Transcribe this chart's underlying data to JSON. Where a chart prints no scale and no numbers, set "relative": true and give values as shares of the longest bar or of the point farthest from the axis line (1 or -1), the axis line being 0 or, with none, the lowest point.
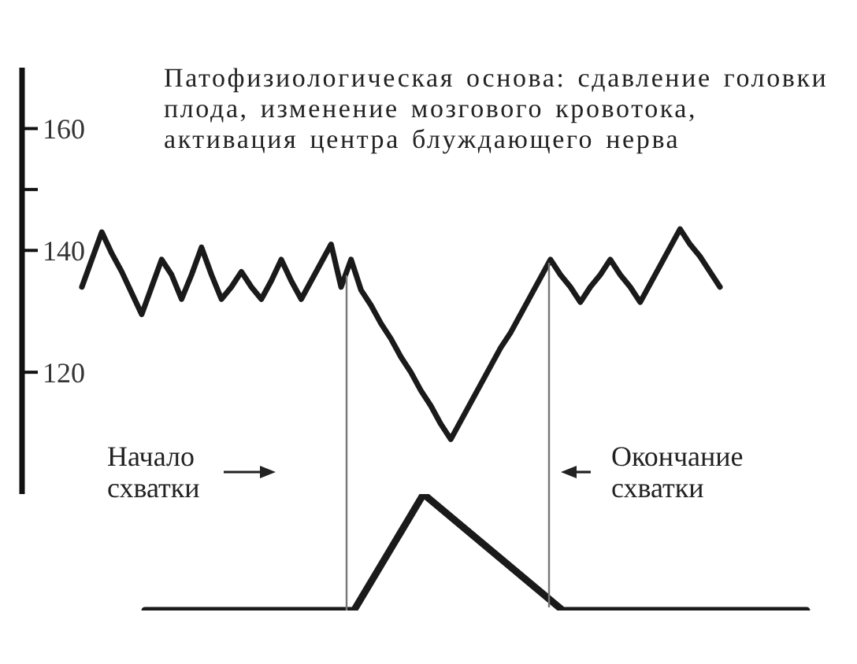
{
  "chart_data": [
    {
      "type": "line",
      "annotations": [
        "Патофизиологическая основа: сдавление головки плода, изменение мозгового кровотока, активация центра блуждающего нерва"
      ],
      "categories": [
        null,
        null,
        null,
        null,
        null,
        null,
        null,
        null,
        null,
        null,
        null,
        null,
        null,
        null,
        null,
        null,
        null,
        null,
        null,
        null,
        null,
        null,
        null,
        null,
        null,
        null,
        null,
        null,
        null,
        null,
        null,
        null,
        null,
        null,
        null,
        null,
        null,
        null,
        null,
        null,
        null,
        null,
        null,
        null,
        null,
        null,
        null,
        null,
        null,
        null,
        null,
        null,
        null,
        null,
        null,
        null,
        null,
        null,
        null,
        null,
        null,
        null,
        null,
        null,
        null,
        null,
        null,
        null,
        null,
        null,
        null
      ],
      "series": [
        {
          "color": "#1a1a1a",
          "values": [
            null,
            null,
            null,
            null,
            null,
            null,
            134,
            138.5,
            143,
            139.5,
            136.5,
            133,
            129.5,
            134,
            138.5,
            136,
            132,
            136,
            140.5,
            136,
            132,
            134,
            136.5,
            134,
            132,
            135,
            138.5,
            135,
            132,
            135,
            138,
            141,
            134,
            138.5,
            133.5,
            131,
            128,
            125.5,
            122.5,
            120,
            117,
            114.5,
            111.5,
            109,
            112,
            115,
            118,
            121,
            124,
            126.5,
            129.5,
            132.5,
            135.5,
            138.5,
            136,
            134,
            131.5,
            134,
            136,
            138.5,
            136,
            134,
            131.5,
            134.5,
            137.5,
            140.5,
            143.5,
            141,
            139,
            136.5,
            134
          ]
        }
      ],
      "ylim": [
        100,
        170
      ],
      "yticks": [
        160,
        {
          "value": 150,
          "label": null
        },
        140,
        120
      ],
      "tick_labels": "y",
      "marker": "none",
      "line_style": "solid"
    },
    {
      "type": "line",
      "relative": true,
      "annotations": [
        "Начало схватки",
        "Окончание схватки"
      ],
      "categories": [
        null,
        null,
        null,
        null,
        null,
        null,
        null,
        null,
        null,
        null,
        null,
        null,
        null,
        null,
        null,
        null,
        null,
        null,
        null,
        null
      ],
      "series": [
        {
          "color": "#1a1a1a",
          "values": [
            0,
            0,
            0,
            0,
            0,
            0,
            0,
            0.5,
            1,
            0.75,
            0.5,
            0.25,
            0,
            0,
            0,
            0,
            0,
            0,
            0,
            0
          ]
        }
      ],
      "tick_labels": false,
      "marker": "none",
      "line_style": "solid"
    }
  ]
}
